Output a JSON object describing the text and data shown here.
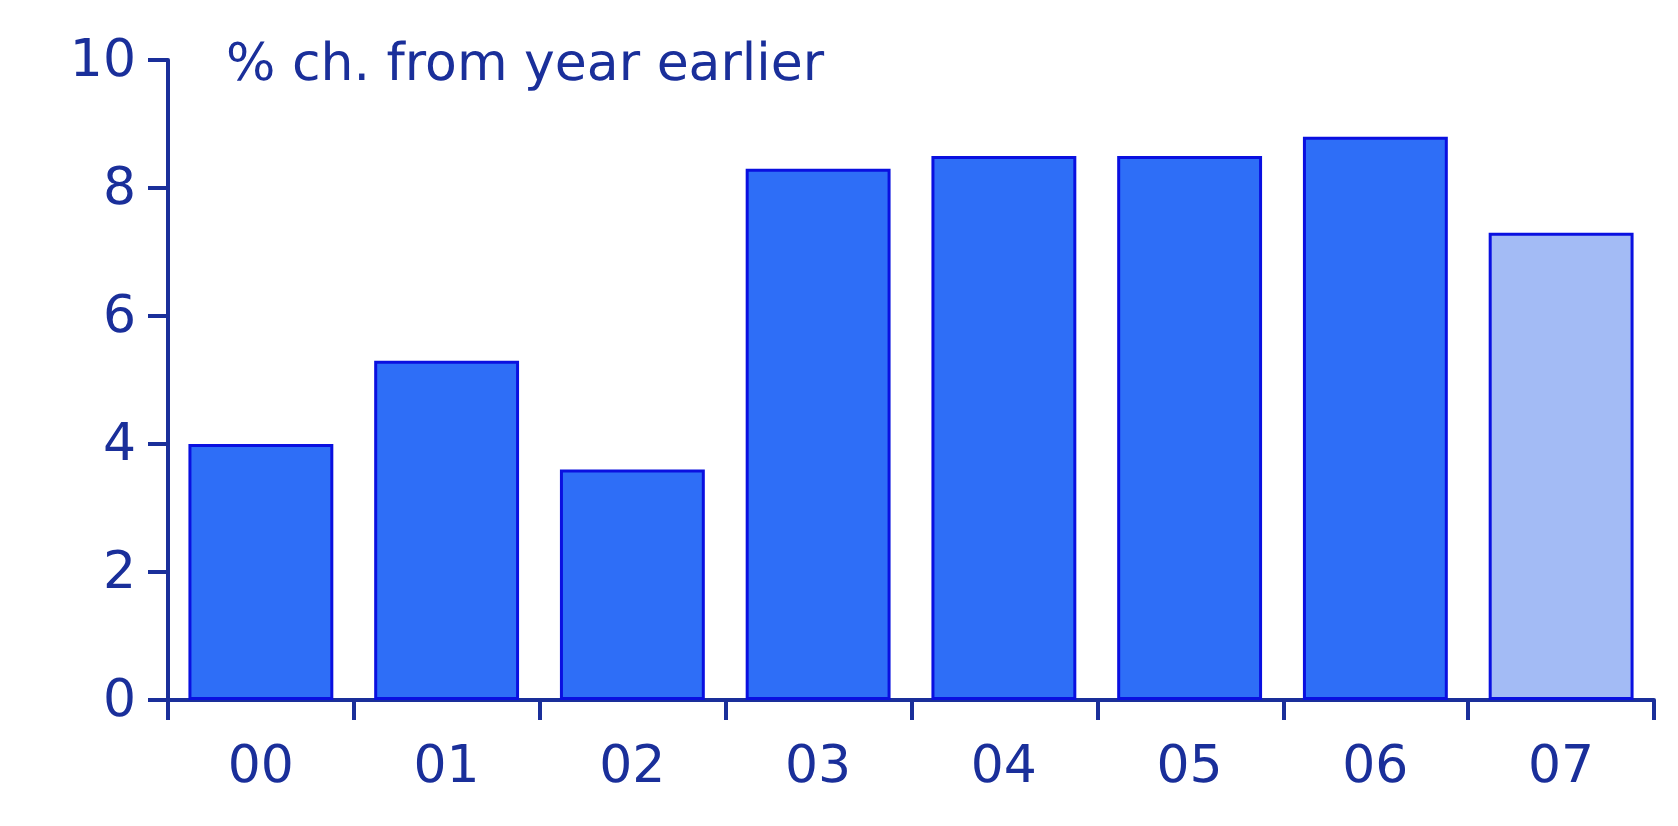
{
  "chart_data": {
    "type": "bar",
    "title": "% ch. from year earlier",
    "categories": [
      "00",
      "01",
      "02",
      "03",
      "04",
      "05",
      "06",
      "07"
    ],
    "values": [
      4.0,
      5.3,
      3.6,
      8.3,
      8.5,
      8.5,
      8.8,
      7.3
    ],
    "colors": [
      "#2e6ef7",
      "#2e6ef7",
      "#2e6ef7",
      "#2e6ef7",
      "#2e6ef7",
      "#2e6ef7",
      "#2e6ef7",
      "#a3bbf5"
    ],
    "ylim": [
      0,
      10
    ],
    "yticks": [
      0,
      2,
      4,
      6,
      8,
      10
    ],
    "grid": false
  }
}
